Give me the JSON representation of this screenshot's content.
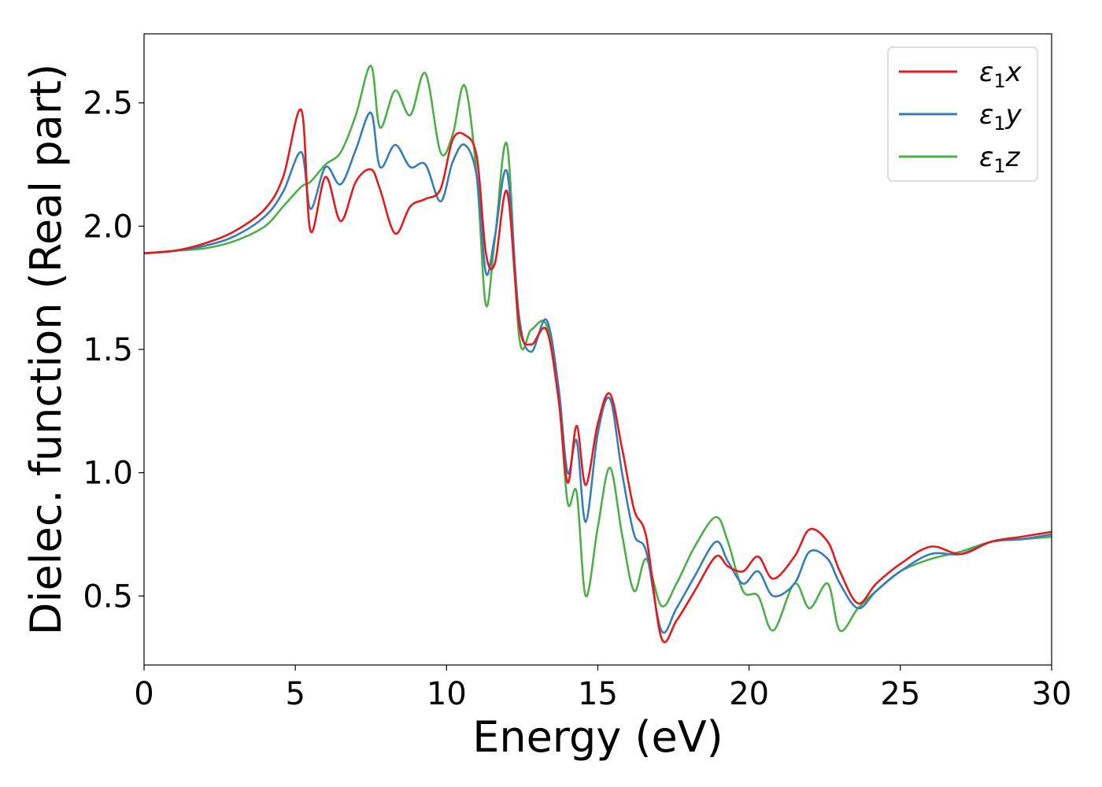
{
  "chart_data": {
    "type": "line",
    "title": "",
    "xlabel": "Energy (eV)",
    "ylabel": "Dielec. function (Real part)",
    "xlim": [
      0,
      30
    ],
    "ylim": [
      0.22,
      2.78
    ],
    "xticks": [
      0,
      5,
      10,
      15,
      20,
      25,
      30
    ],
    "xtick_labels": [
      "0",
      "5",
      "10",
      "15",
      "20",
      "25",
      "30"
    ],
    "yticks": [
      0.5,
      1.0,
      1.5,
      2.0,
      2.5
    ],
    "ytick_labels": [
      "0.5",
      "1.0",
      "1.5",
      "2.0",
      "2.5"
    ],
    "grid": false,
    "legend_position": "top-right",
    "x": [
      0,
      1,
      2,
      3,
      4,
      4.6,
      5.2,
      5.5,
      6.0,
      6.5,
      7.0,
      7.5,
      7.8,
      8.3,
      8.8,
      9.3,
      9.8,
      10.2,
      10.6,
      11.0,
      11.3,
      11.6,
      12.0,
      12.4,
      12.8,
      13.3,
      13.7,
      14.0,
      14.3,
      14.6,
      15.0,
      15.4,
      15.8,
      16.2,
      16.6,
      17.1,
      17.6,
      18.2,
      18.9,
      19.3,
      19.8,
      20.3,
      20.8,
      21.5,
      22.0,
      22.6,
      23.0,
      23.6,
      24.2,
      25.0,
      26.0,
      27.0,
      28.0,
      29.0,
      30.0
    ],
    "series": [
      {
        "name": "ε1x",
        "color": "#e41a1c",
        "values": [
          1.89,
          1.9,
          1.93,
          1.98,
          2.07,
          2.2,
          2.47,
          1.98,
          2.2,
          2.02,
          2.18,
          2.23,
          2.15,
          1.97,
          2.08,
          2.11,
          2.15,
          2.35,
          2.37,
          2.28,
          1.89,
          1.85,
          2.14,
          1.6,
          1.52,
          1.58,
          1.3,
          0.96,
          1.19,
          0.95,
          1.2,
          1.32,
          1.1,
          0.85,
          0.74,
          0.33,
          0.4,
          0.52,
          0.66,
          0.62,
          0.6,
          0.66,
          0.57,
          0.66,
          0.77,
          0.72,
          0.6,
          0.47,
          0.55,
          0.63,
          0.7,
          0.67,
          0.72,
          0.74,
          0.76
        ]
      },
      {
        "name": "ε1y",
        "color": "#377eb8",
        "values": [
          1.89,
          1.9,
          1.92,
          1.96,
          2.04,
          2.14,
          2.3,
          2.07,
          2.24,
          2.17,
          2.31,
          2.46,
          2.24,
          2.33,
          2.24,
          2.25,
          2.1,
          2.26,
          2.33,
          2.2,
          1.81,
          1.96,
          2.22,
          1.63,
          1.49,
          1.62,
          1.35,
          1.0,
          1.13,
          0.8,
          1.16,
          1.3,
          1.0,
          0.75,
          0.68,
          0.36,
          0.45,
          0.58,
          0.72,
          0.64,
          0.55,
          0.6,
          0.5,
          0.55,
          0.68,
          0.65,
          0.55,
          0.45,
          0.52,
          0.6,
          0.67,
          0.67,
          0.72,
          0.73,
          0.75
        ]
      },
      {
        "name": "ε1z",
        "color": "#4daf4a",
        "values": [
          1.89,
          1.9,
          1.91,
          1.94,
          2.0,
          2.08,
          2.16,
          2.18,
          2.25,
          2.3,
          2.45,
          2.65,
          2.4,
          2.55,
          2.45,
          2.62,
          2.3,
          2.37,
          2.57,
          2.2,
          1.68,
          1.95,
          2.33,
          1.55,
          1.58,
          1.6,
          1.32,
          0.88,
          0.92,
          0.5,
          0.78,
          1.02,
          0.75,
          0.52,
          0.65,
          0.46,
          0.55,
          0.7,
          0.82,
          0.72,
          0.52,
          0.5,
          0.36,
          0.55,
          0.45,
          0.55,
          0.36,
          0.45,
          0.52,
          0.6,
          0.65,
          0.68,
          0.72,
          0.73,
          0.74
        ]
      }
    ]
  },
  "legend": {
    "items": [
      {
        "base": "ε",
        "sub": "1",
        "axis": "x",
        "color": "#e41a1c"
      },
      {
        "base": "ε",
        "sub": "1",
        "axis": "y",
        "color": "#377eb8"
      },
      {
        "base": "ε",
        "sub": "1",
        "axis": "z",
        "color": "#4daf4a"
      }
    ]
  }
}
